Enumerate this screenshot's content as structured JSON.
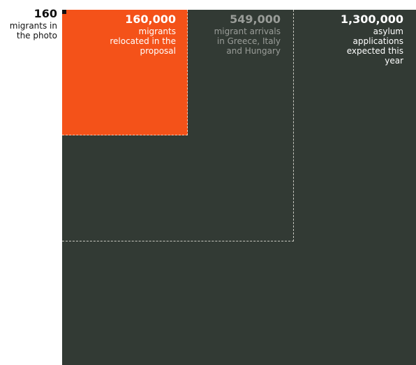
{
  "chart_data": {
    "type": "area",
    "series": [
      {
        "value": 1300000,
        "label_value": "1,300,000",
        "label_text": "asylum\napplications\nexpected this\nyear",
        "fill": "#323a34"
      },
      {
        "value": 549000,
        "label_value": "549,000",
        "label_text": "migrant arrivals\nin Greece, Italy\nand Hungary",
        "fill": "none"
      },
      {
        "value": 160000,
        "label_value": "160,000",
        "label_text": "migrants\nrelocated in the\nproposal",
        "fill": "#f45219"
      },
      {
        "value": 160,
        "label_value": "160",
        "label_text": "migrants in\nthe photo",
        "fill": "#111111"
      }
    ]
  }
}
